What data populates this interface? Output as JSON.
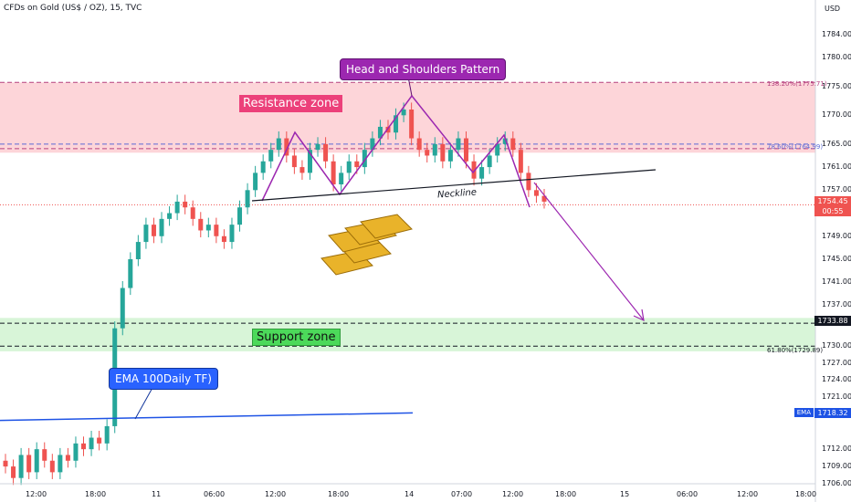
{
  "header": {
    "symbol": "CFDs on Gold (US$ / OZ), 15, TVC"
  },
  "axis": {
    "currency": "USD",
    "y_ticks": [
      "1784.00",
      "1780.00",
      "1775.00",
      "1770.00",
      "1765.00",
      "1761.00",
      "1757.00",
      "1749.00",
      "1745.00",
      "1741.00",
      "1737.00",
      "1730.00",
      "1727.00",
      "1724.00",
      "1721.00",
      "1712.00",
      "1709.00",
      "1706.00"
    ],
    "y_tick_values": [
      1784,
      1780,
      1775,
      1770,
      1765,
      1761,
      1757,
      1749,
      1745,
      1741,
      1737,
      1730,
      1727,
      1724,
      1721,
      1712,
      1709,
      1706
    ],
    "x_ticks": [
      "12:00",
      "18:00",
      "11",
      "06:00",
      "12:00",
      "18:00",
      "14",
      "07:00",
      "12:00",
      "18:00",
      "15",
      "06:00",
      "12:00",
      "18:00"
    ]
  },
  "price_tags": {
    "current": "1754.45",
    "countdown": "00:55",
    "support": "1733.88",
    "ema_label": "EMA",
    "ema_value": "1718.32"
  },
  "fib": {
    "upper": "138.20%(1775.71)",
    "mid": "78.60%(1764.99)",
    "lower": "61.80%(1729.89)"
  },
  "annotations": {
    "resistance": "Resistance zone",
    "support": "Support zone",
    "head_shoulders": "Head and Shoulders Pattern",
    "ema": "EMA 100Daily TF)",
    "neckline": "Neckline"
  },
  "colors": {
    "bull": "#26a69a",
    "bear": "#ef5350",
    "resistance_fill": "#fdd5d9",
    "support_fill": "#d8f5d8",
    "pattern": "#9c27b0",
    "ema": "#1e53e5",
    "current_price": "#ef5350"
  },
  "chart_data": {
    "type": "candlestick",
    "title": "CFDs on Gold (US$ / OZ), 15, TVC",
    "ylim": [
      1705,
      1789
    ],
    "zones": {
      "resistance": [
        1763.5,
        1775.7
      ],
      "support": [
        1729.0,
        1734.8
      ]
    },
    "levels": {
      "fib_138_2": 1775.71,
      "fib_78_6": 1764.99,
      "fib_61_8": 1729.89,
      "support_line": 1733.88,
      "current": 1754.45
    },
    "ema_100_daily": [
      1717.0,
      1718.3
    ],
    "close_series": [
      1709,
      1707,
      1711,
      1708,
      1712,
      1710,
      1708,
      1711,
      1710,
      1713,
      1712,
      1714,
      1713,
      1716,
      1733,
      1740,
      1745,
      1748,
      1751,
      1749,
      1752,
      1753,
      1755,
      1754,
      1752,
      1750,
      1751,
      1749,
      1748,
      1751,
      1754,
      1757,
      1760,
      1762,
      1764,
      1766,
      1763,
      1761,
      1760,
      1764,
      1765,
      1762,
      1758,
      1760,
      1762,
      1761,
      1764,
      1766,
      1768,
      1767,
      1770,
      1771,
      1766,
      1764,
      1763,
      1765,
      1762,
      1764,
      1766,
      1762,
      1759,
      1761,
      1763,
      1765,
      1766,
      1764,
      1760,
      1757,
      1756,
      1755
    ]
  }
}
